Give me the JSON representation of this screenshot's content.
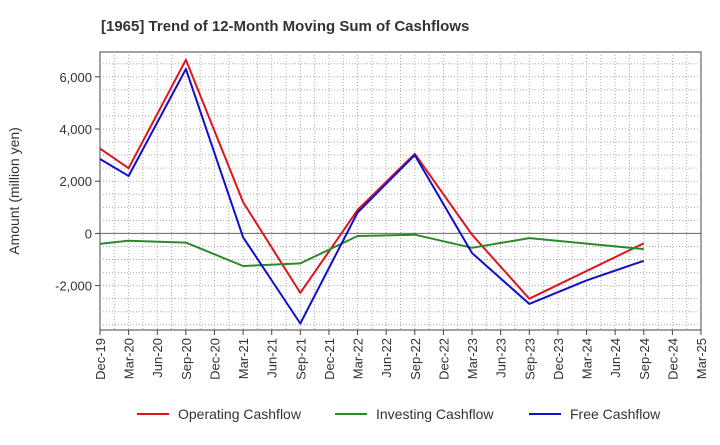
{
  "chart_data": {
    "type": "line",
    "title": "[1965]  Trend of 12-Month Moving Sum of Cashflows",
    "xlabel": "",
    "ylabel": "Amount (million yen)",
    "x": [
      "Dec-19",
      "Mar-20",
      "Jun-20",
      "Sep-20",
      "Dec-20",
      "Mar-21",
      "Jun-21",
      "Sep-21",
      "Dec-21",
      "Mar-22",
      "Jun-22",
      "Sep-22",
      "Dec-22",
      "Mar-23",
      "Jun-23",
      "Sep-23",
      "Dec-23",
      "Mar-24",
      "Jun-24",
      "Sep-24",
      "Dec-24",
      "Mar-25"
    ],
    "yticks": [
      -2000,
      0,
      2000,
      4000,
      6000
    ],
    "ytick_labels": [
      "-2,000",
      "0",
      "2,000",
      "4,000",
      "6,000"
    ],
    "ylim": [
      -3700,
      6950
    ],
    "grid": true,
    "legend_position": "bottom",
    "series": [
      {
        "name": "Operating Cashflow",
        "color": "#e0141e",
        "values": [
          3250,
          2500,
          null,
          6650,
          null,
          1200,
          null,
          -2280,
          null,
          900,
          null,
          3050,
          null,
          -50,
          null,
          -2500,
          null,
          null,
          null,
          -380,
          null,
          null
        ]
      },
      {
        "name": "Investing Cashflow",
        "color": "#2a8a2a",
        "values": [
          -400,
          -280,
          null,
          -350,
          null,
          -1250,
          null,
          -1150,
          null,
          -100,
          null,
          -50,
          null,
          -550,
          null,
          -180,
          null,
          null,
          null,
          -600,
          null,
          null
        ]
      },
      {
        "name": "Free Cashflow",
        "color": "#1010cc",
        "values": [
          2850,
          2200,
          null,
          6300,
          null,
          -150,
          null,
          -3450,
          null,
          800,
          null,
          3000,
          null,
          -750,
          null,
          -2700,
          null,
          -1800,
          null,
          -1050,
          null,
          null
        ]
      }
    ]
  }
}
